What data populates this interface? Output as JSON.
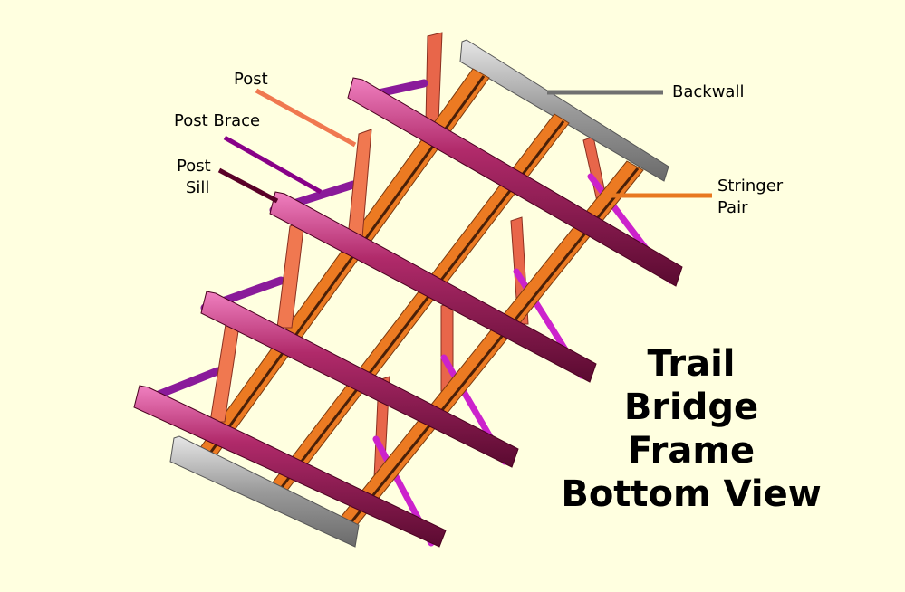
{
  "labels": {
    "post": "Post",
    "post_brace": "Post Brace",
    "post_sill_line1": "Post",
    "post_sill_line2": "Sill",
    "backwall": "Backwall",
    "stringer_pair_line1": "Stringer",
    "stringer_pair_line2": "Pair"
  },
  "title_lines": [
    "Trail",
    "Bridge",
    "Frame",
    "Bottom View"
  ],
  "colors": {
    "background": "#ffffe0",
    "post": "#f07850",
    "post_brace": "#880088",
    "post_sill": "#5a0028",
    "backwall": "#707070",
    "stringer": "#e87820",
    "cross_beam": "#8a1a4a",
    "diagonal_brace": "#cc33cc"
  }
}
